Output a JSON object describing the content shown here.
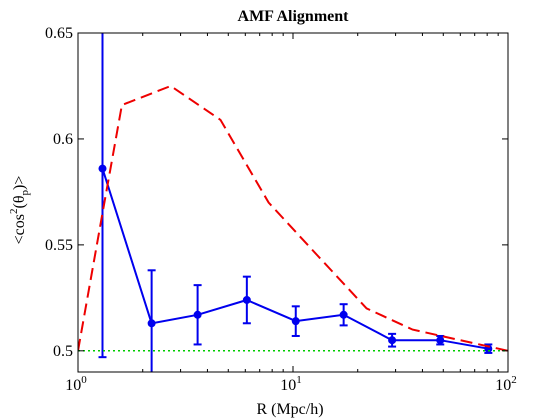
{
  "chart_data": {
    "type": "line",
    "title": "AMF Alignment",
    "xlabel": "R (Mpc/h)",
    "ylabel": {
      "prefix": "<cos",
      "power": "2",
      "open": "(θ",
      "sub": "p",
      "close": ")>"
    },
    "x_scale": "log",
    "xlim": [
      1,
      100
    ],
    "ylim": [
      0.49,
      0.65
    ],
    "x_ticks": [
      {
        "value": 1,
        "base": "10",
        "exp": "0"
      },
      {
        "value": 10,
        "base": "10",
        "exp": "1"
      },
      {
        "value": 100,
        "base": "10",
        "exp": "2"
      }
    ],
    "y_ticks": [
      {
        "value": 0.5,
        "label": "0.5"
      },
      {
        "value": 0.55,
        "label": "0.55"
      },
      {
        "value": 0.6,
        "label": "0.6"
      },
      {
        "value": 0.65,
        "label": "0.65"
      }
    ],
    "grid": false,
    "series": [
      {
        "style": "solid-markers-errorbars",
        "color": "#0000ee",
        "x": [
          1.3,
          2.2,
          3.6,
          6.1,
          10.3,
          17.2,
          28.9,
          48.4,
          81
        ],
        "y": [
          0.586,
          0.513,
          0.517,
          0.524,
          0.514,
          0.517,
          0.505,
          0.505,
          0.501
        ],
        "err": [
          0.089,
          0.025,
          0.014,
          0.011,
          0.007,
          0.005,
          0.003,
          0.002,
          0.002
        ]
      },
      {
        "style": "dashed",
        "color": "#ee0000",
        "x": [
          1.0,
          1.3,
          1.6,
          2.7,
          4.6,
          7.7,
          13.0,
          22.0,
          36.0,
          60.0,
          100.0
        ],
        "y": [
          0.5,
          0.565,
          0.616,
          0.625,
          0.609,
          0.57,
          0.545,
          0.52,
          0.51,
          0.505,
          0.5
        ]
      },
      {
        "style": "dotted",
        "color": "#00cc00",
        "x": [
          1,
          100
        ],
        "y": [
          0.5,
          0.5
        ]
      }
    ]
  }
}
